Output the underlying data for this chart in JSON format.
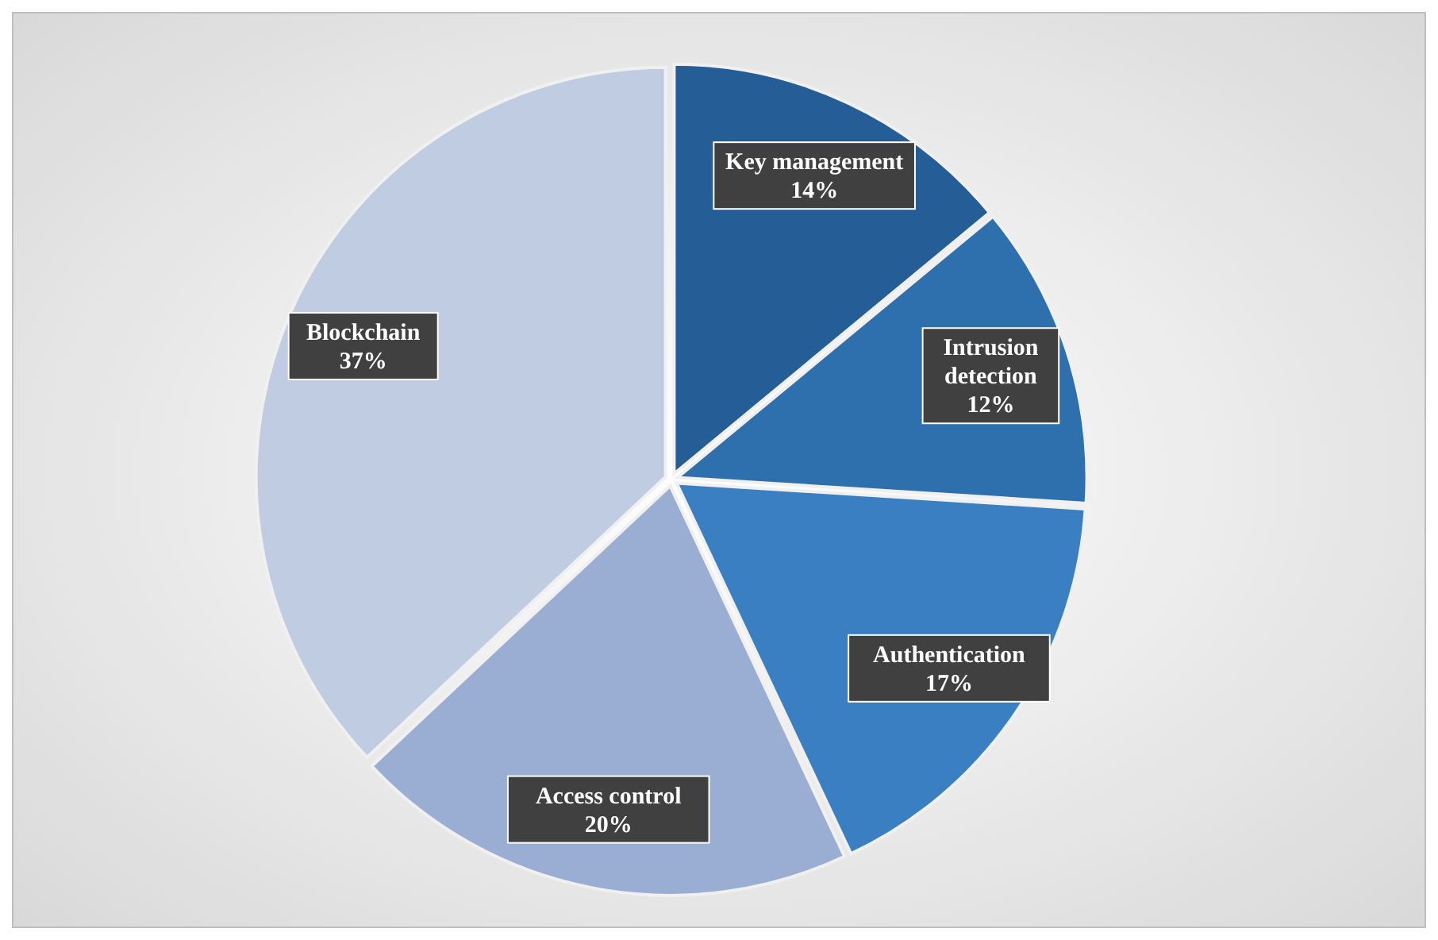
{
  "chart_data": {
    "type": "pie",
    "categories": [
      "Key management",
      "Intrusion detection",
      "Authentication",
      "Access control",
      "Blockchain"
    ],
    "values": [
      14,
      12,
      17,
      20,
      37
    ],
    "colors": [
      "#255e97",
      "#2e6fad",
      "#3a7fc1",
      "#9aaed3",
      "#c0cce2"
    ],
    "value_labels": [
      "14%",
      "12%",
      "17%",
      "20%",
      "37%"
    ]
  }
}
